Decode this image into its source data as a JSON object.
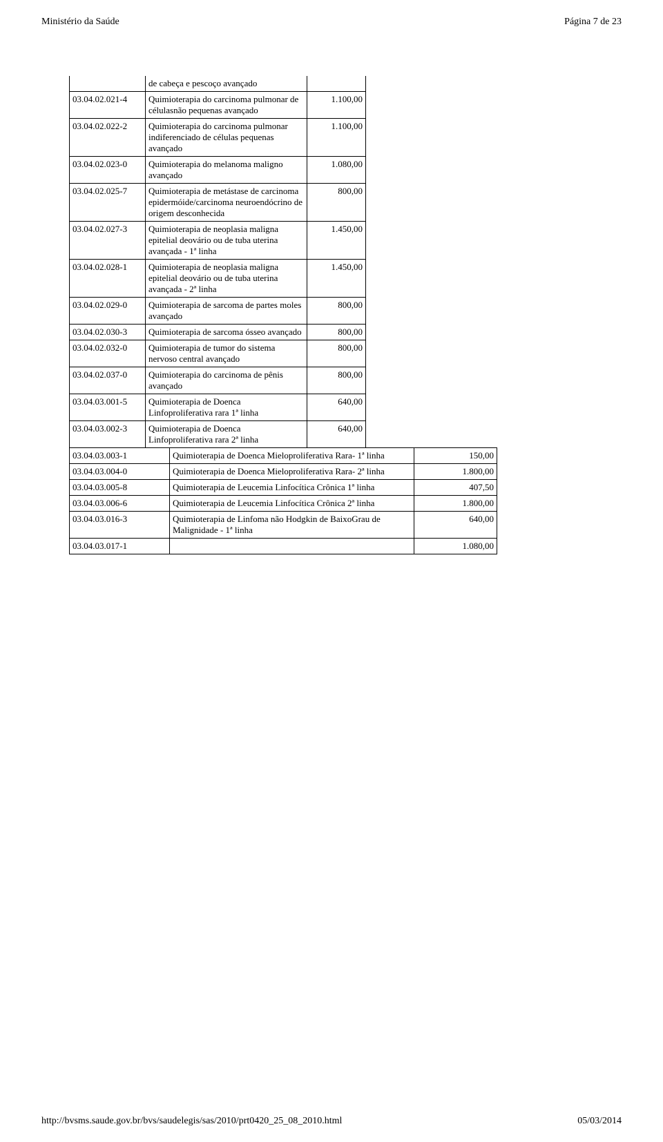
{
  "header": {
    "org": "Ministério da Saúde",
    "page": "Página 7 de 23"
  },
  "intro": {
    "desc": "de cabeça e pescoço avançado"
  },
  "group1": [
    {
      "code": "03.04.02.021-4",
      "desc": "Quimioterapia do carcinoma pulmonar de célulasnão pequenas avançado",
      "val": "1.100,00"
    },
    {
      "code": "03.04.02.022-2",
      "desc": "Quimioterapia do carcinoma pulmonar indiferenciado de células pequenas avançado",
      "val": "1.100,00"
    },
    {
      "code": "03.04.02.023-0",
      "desc": "Quimioterapia do melanoma maligno avançado",
      "val": "1.080,00"
    },
    {
      "code": "03.04.02.025-7",
      "desc": "Quimioterapia de metástase de carcinoma epidermóide/carcinoma neuroendócrino de origem desconhecida",
      "val": "800,00"
    },
    {
      "code": "03.04.02.027-3",
      "desc": "Quimioterapia de neoplasia maligna epitelial deovário ou de tuba uterina avançada - 1ª linha",
      "val": "1.450,00"
    },
    {
      "code": "03.04.02.028-1",
      "desc": "Quimioterapia de neoplasia maligna epitelial deovário ou de tuba uterina avançada - 2ª linha",
      "val": "1.450,00"
    },
    {
      "code": "03.04.02.029-0",
      "desc": "Quimioterapia de sarcoma de partes moles avançado",
      "val": "800,00"
    },
    {
      "code": "03.04.02.030-3",
      "desc": "Quimioterapia de sarcoma ósseo avançado",
      "val": "800,00"
    },
    {
      "code": "03.04.02.032-0",
      "desc": "Quimioterapia de tumor do sistema nervoso central avançado",
      "val": "800,00"
    },
    {
      "code": "03.04.02.037-0",
      "desc": "Quimioterapia do carcinoma de pênis avançado",
      "val": "800,00"
    },
    {
      "code": "03.04.03.001-5",
      "desc": "Quimioterapia de Doenca Linfoproliferativa rara 1ª linha",
      "val": "640,00"
    },
    {
      "code": "03.04.03.002-3",
      "desc": "Quimioterapia de Doenca Linfoproliferativa rara 2ª linha",
      "val": "640,00"
    }
  ],
  "group2": [
    {
      "code": "03.04.03.003-1",
      "desc": "Quimioterapia de Doenca Mieloproliferativa Rara- 1ª linha",
      "val": "150,00"
    },
    {
      "code": "03.04.03.004-0",
      "desc": "Quimioterapia de Doenca Mieloproliferativa Rara- 2ª linha",
      "val": "1.800,00"
    },
    {
      "code": "03.04.03.005-8",
      "desc": "Quimioterapia de Leucemia Linfocítica Crônica 1ª linha",
      "val": "407,50"
    },
    {
      "code": "03.04.03.006-6",
      "desc": "Quimioterapia de Leucemia Linfocítica Crônica 2ª linha",
      "val": "1.800,00"
    },
    {
      "code": "03.04.03.016-3",
      "desc": "Quimioterapia de Linfoma não Hodgkin de BaixoGrau de Malignidade - 1ª linha",
      "val": "640,00"
    },
    {
      "code": "03.04.03.017-1",
      "desc": "",
      "val": "1.080,00"
    }
  ],
  "footer": {
    "url": "http://bvsms.saude.gov.br/bvs/saudelegis/sas/2010/prt0420_25_08_2010.html",
    "date": "05/03/2014"
  }
}
